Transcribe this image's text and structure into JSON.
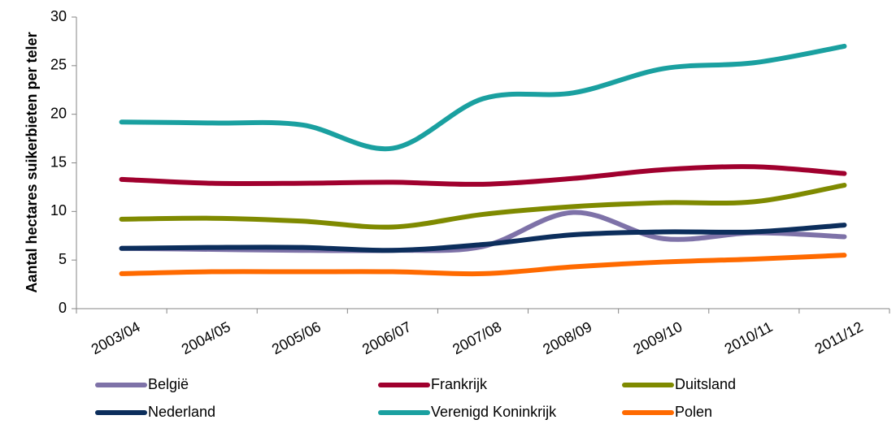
{
  "chart_data": {
    "type": "line",
    "y_label": "Aantal hectares suikerbieten per teler",
    "categories": [
      "2003/04",
      "2004/05",
      "2005/06",
      "2006/07",
      "2007/08",
      "2008/09",
      "2009/10",
      "2010/11",
      "2011/12"
    ],
    "series": [
      {
        "name": "België",
        "color": "#7e72a8",
        "values": [
          6.2,
          6.1,
          6.0,
          6.0,
          6.4,
          9.9,
          7.2,
          7.8,
          7.4
        ]
      },
      {
        "name": "Frankrijk",
        "color": "#a0002e",
        "values": [
          13.3,
          12.9,
          12.9,
          13.0,
          12.8,
          13.4,
          14.3,
          14.6,
          13.9
        ]
      },
      {
        "name": "Duitsland",
        "color": "#7f8a00",
        "values": [
          9.2,
          9.3,
          9.0,
          8.4,
          9.7,
          10.5,
          10.9,
          11.0,
          12.7
        ]
      },
      {
        "name": "Nederland",
        "color": "#0c2e5c",
        "values": [
          6.2,
          6.3,
          6.3,
          6.0,
          6.6,
          7.6,
          7.9,
          7.9,
          8.6
        ]
      },
      {
        "name": "Verenigd Koninkrijk",
        "color": "#1aa0a0",
        "values": [
          19.2,
          19.1,
          18.9,
          16.5,
          21.6,
          22.2,
          24.7,
          25.3,
          27.0
        ]
      },
      {
        "name": "Polen",
        "color": "#ff6a00",
        "values": [
          3.6,
          3.8,
          3.8,
          3.8,
          3.6,
          4.3,
          4.8,
          5.1,
          5.5
        ]
      }
    ],
    "ylim": [
      0,
      30
    ],
    "yticks": [
      0,
      5,
      10,
      15,
      20,
      25,
      30
    ],
    "legend": "bottom"
  }
}
